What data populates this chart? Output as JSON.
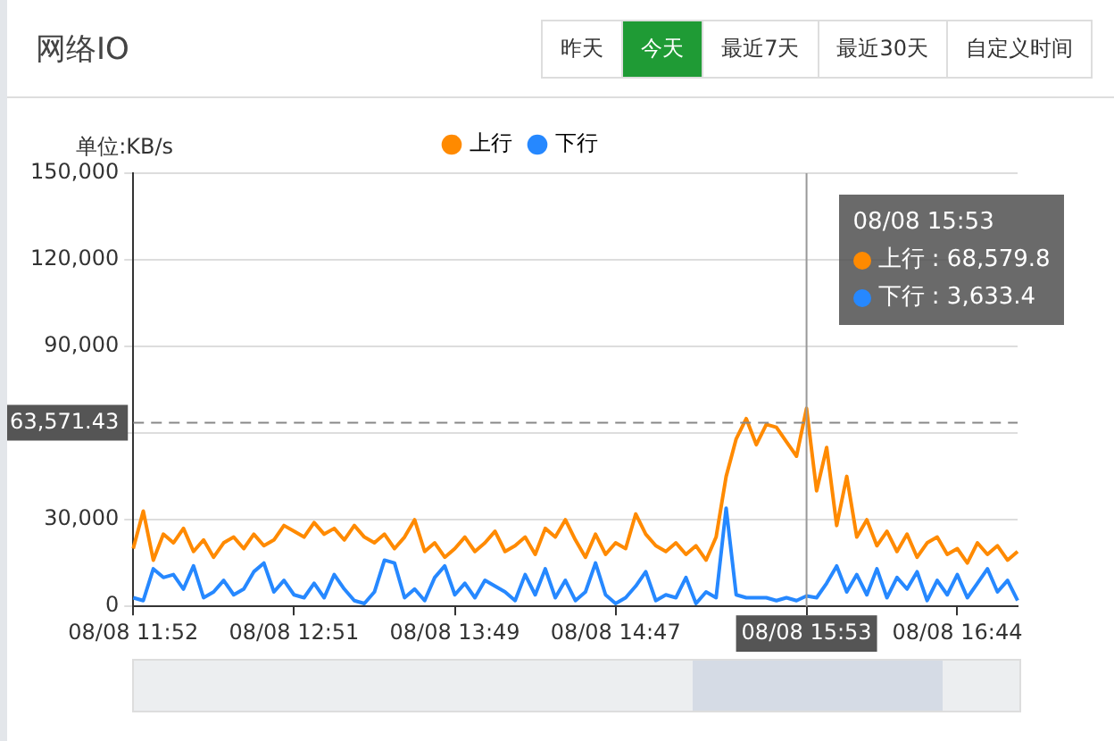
{
  "chart_data": {
    "type": "line",
    "title": "网络IO",
    "ylabel": "单位:KB/s",
    "annotations": [
      "昨天",
      "今天",
      "最近7天",
      "最近30天",
      "自定义时间",
      "08/08 15:53",
      "上行 : 68,579.8",
      "下行 : 3,633.4"
    ],
    "categories": [
      "08/08 11:52",
      null,
      null,
      null,
      null,
      null,
      null,
      null,
      null,
      null,
      null,
      null,
      null,
      null,
      null,
      null,
      "08/08 12:51",
      null,
      null,
      null,
      null,
      null,
      null,
      null,
      null,
      null,
      null,
      null,
      null,
      null,
      null,
      null,
      "08/08 13:49",
      null,
      null,
      null,
      null,
      null,
      null,
      null,
      null,
      null,
      null,
      null,
      null,
      null,
      null,
      null,
      "08/08 14:47",
      null,
      null,
      null,
      null,
      null,
      null,
      null,
      null,
      null,
      null,
      null,
      null,
      null,
      null,
      null,
      null,
      null,
      null,
      "08/08 15:53",
      null,
      null,
      null,
      null,
      null,
      null,
      null,
      null,
      null,
      null,
      null,
      null,
      null,
      null,
      "08/08 16:44",
      null,
      null,
      null,
      null,
      null,
      null
    ],
    "series": [
      {
        "name": "上行",
        "color": "#ff8a00",
        "values": [
          20000,
          33000,
          16000,
          25000,
          22000,
          27000,
          19000,
          23000,
          17000,
          22000,
          24000,
          20000,
          25000,
          21000,
          23000,
          28000,
          26000,
          24000,
          29000,
          25000,
          27000,
          23000,
          28000,
          24000,
          22000,
          25000,
          20000,
          24000,
          30000,
          19000,
          22000,
          17000,
          20000,
          24000,
          19000,
          22000,
          26000,
          19000,
          21000,
          24000,
          18000,
          27000,
          24000,
          30000,
          23000,
          17000,
          25000,
          18000,
          22000,
          20000,
          32000,
          25000,
          21000,
          19000,
          22000,
          18000,
          21000,
          16000,
          24000,
          45000,
          58000,
          65000,
          56000,
          63000,
          62000,
          57000,
          52000,
          68579.8,
          40000,
          55000,
          28000,
          45000,
          24000,
          30000,
          21000,
          26000,
          19000,
          25000,
          17000,
          22000,
          24000,
          18000,
          20000,
          15000,
          22000,
          18000,
          21000,
          16000,
          19000
        ]
      },
      {
        "name": "下行",
        "color": "#2688ff",
        "values": [
          3000,
          2000,
          13000,
          10000,
          11000,
          6000,
          14000,
          3000,
          5000,
          9000,
          4000,
          6000,
          12000,
          15000,
          5000,
          9000,
          4000,
          3000,
          8000,
          3000,
          11000,
          6000,
          2000,
          1000,
          5000,
          16000,
          15000,
          3000,
          6000,
          2000,
          10000,
          14000,
          4000,
          8000,
          3000,
          9000,
          7000,
          5000,
          2000,
          11000,
          4000,
          13000,
          3000,
          9000,
          2000,
          5000,
          15000,
          4000,
          1000,
          3000,
          7000,
          12000,
          2000,
          4000,
          3000,
          10000,
          1000,
          5000,
          3000,
          34000,
          4000,
          3000,
          3000,
          3000,
          2000,
          3000,
          2000,
          3633.4,
          3000,
          8000,
          14000,
          5000,
          11000,
          4000,
          13000,
          3000,
          10000,
          6000,
          12000,
          2000,
          9000,
          4000,
          11000,
          3000,
          8000,
          13000,
          5000,
          9000,
          2000
        ]
      }
    ],
    "ylim": [
      0,
      150000
    ],
    "yticks": [
      0,
      {
        "value": 30000,
        "label": "30,000"
      },
      {
        "value": 60000,
        "label": null
      },
      {
        "value": 90000,
        "label": "90,000"
      },
      {
        "value": 120000,
        "label": "120,000"
      },
      {
        "value": 150000,
        "label": "150,000"
      }
    ],
    "ref_lines": [
      {
        "axis": "y",
        "value": 63571.43,
        "label": "63,571.43",
        "line_style": "dashed",
        "color": "#888888"
      },
      {
        "axis": "x",
        "value": "08/08 15:53",
        "color": "#999999"
      }
    ],
    "grid": "y",
    "legend": "top",
    "marker": "none",
    "line_style": "solid"
  }
}
